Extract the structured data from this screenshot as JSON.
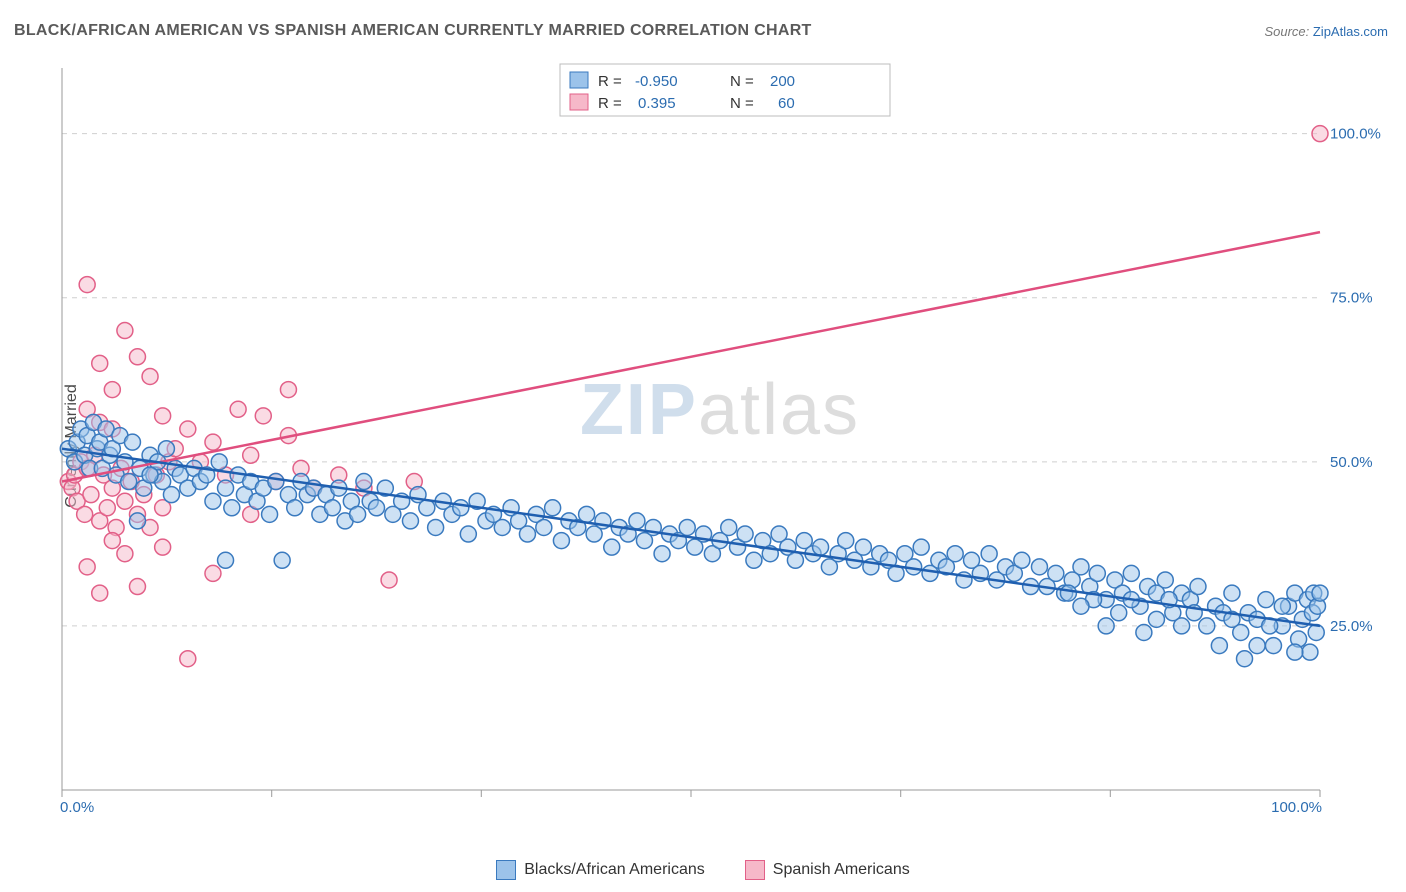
{
  "title": "BLACK/AFRICAN AMERICAN VS SPANISH AMERICAN CURRENTLY MARRIED CORRELATION CHART",
  "source_label": "Source: ",
  "source_link_text": "ZipAtlas.com",
  "ylabel": "Currently Married",
  "watermark_a": "ZIP",
  "watermark_b": "atlas",
  "chart": {
    "type": "scatter",
    "background_color": "#ffffff",
    "grid_color": "#cfcfcf",
    "axis_color": "#9a9a9a",
    "xlim": [
      0,
      100
    ],
    "ylim": [
      0,
      110
    ],
    "ytick_positions": [
      25,
      50,
      75,
      100
    ],
    "ytick_labels": [
      "25.0%",
      "50.0%",
      "75.0%",
      "100.0%"
    ],
    "xtick_positions": [
      0,
      16.67,
      33.33,
      50,
      66.67,
      83.33,
      100
    ],
    "xtick_labels_shown": {
      "0": "0.0%",
      "100": "100.0%"
    },
    "marker_radius": 8,
    "marker_opacity": 0.5,
    "trend_line_width": 2.5
  },
  "series_blue": {
    "label": "Blacks/African Americans",
    "fill_color": "#9cc3ea",
    "stroke_color": "#3a7abf",
    "trend_color": "#1f5fb0",
    "R": "-0.950",
    "N": "200",
    "trend": {
      "x0": 0,
      "y0": 52,
      "x1": 100,
      "y1": 25
    },
    "points": [
      [
        0.5,
        52
      ],
      [
        1,
        50
      ],
      [
        1.2,
        53
      ],
      [
        1.5,
        55
      ],
      [
        1.8,
        51
      ],
      [
        2,
        54
      ],
      [
        2.2,
        49
      ],
      [
        2.5,
        56
      ],
      [
        2.8,
        52
      ],
      [
        3,
        53
      ],
      [
        3.2,
        49
      ],
      [
        3.5,
        55
      ],
      [
        3.8,
        51
      ],
      [
        4,
        52
      ],
      [
        4.3,
        48
      ],
      [
        4.6,
        54
      ],
      [
        5,
        50
      ],
      [
        5.3,
        47
      ],
      [
        5.6,
        53
      ],
      [
        6,
        41
      ],
      [
        6.2,
        49
      ],
      [
        6.5,
        46
      ],
      [
        7,
        51
      ],
      [
        7.3,
        48
      ],
      [
        7.6,
        50
      ],
      [
        8,
        47
      ],
      [
        8.3,
        52
      ],
      [
        8.7,
        45
      ],
      [
        9,
        49
      ],
      [
        9.4,
        48
      ],
      [
        10,
        46
      ],
      [
        10.5,
        49
      ],
      [
        11,
        47
      ],
      [
        11.5,
        48
      ],
      [
        12,
        44
      ],
      [
        12.5,
        50
      ],
      [
        13,
        46
      ],
      [
        13.5,
        43
      ],
      [
        14,
        48
      ],
      [
        14.5,
        45
      ],
      [
        15,
        47
      ],
      [
        15.5,
        44
      ],
      [
        16,
        46
      ],
      [
        16.5,
        42
      ],
      [
        17,
        47
      ],
      [
        17.5,
        35
      ],
      [
        18,
        45
      ],
      [
        18.5,
        43
      ],
      [
        19,
        47
      ],
      [
        19.5,
        45
      ],
      [
        20,
        46
      ],
      [
        20.5,
        42
      ],
      [
        21,
        45
      ],
      [
        21.5,
        43
      ],
      [
        22,
        46
      ],
      [
        22.5,
        41
      ],
      [
        23,
        44
      ],
      [
        23.5,
        42
      ],
      [
        24,
        47
      ],
      [
        24.5,
        44
      ],
      [
        25,
        43
      ],
      [
        25.7,
        46
      ],
      [
        26.3,
        42
      ],
      [
        27,
        44
      ],
      [
        27.7,
        41
      ],
      [
        28.3,
        45
      ],
      [
        29,
        43
      ],
      [
        29.7,
        40
      ],
      [
        30.3,
        44
      ],
      [
        31,
        42
      ],
      [
        31.7,
        43
      ],
      [
        32.3,
        39
      ],
      [
        33,
        44
      ],
      [
        33.7,
        41
      ],
      [
        34.3,
        42
      ],
      [
        35,
        40
      ],
      [
        35.7,
        43
      ],
      [
        36.3,
        41
      ],
      [
        37,
        39
      ],
      [
        37.7,
        42
      ],
      [
        38.3,
        40
      ],
      [
        39,
        43
      ],
      [
        39.7,
        38
      ],
      [
        40.3,
        41
      ],
      [
        41,
        40
      ],
      [
        41.7,
        42
      ],
      [
        42.3,
        39
      ],
      [
        43,
        41
      ],
      [
        43.7,
        37
      ],
      [
        44.3,
        40
      ],
      [
        45,
        39
      ],
      [
        45.7,
        41
      ],
      [
        46.3,
        38
      ],
      [
        47,
        40
      ],
      [
        47.7,
        36
      ],
      [
        48.3,
        39
      ],
      [
        49,
        38
      ],
      [
        49.7,
        40
      ],
      [
        50.3,
        37
      ],
      [
        51,
        39
      ],
      [
        51.7,
        36
      ],
      [
        52.3,
        38
      ],
      [
        53,
        40
      ],
      [
        53.7,
        37
      ],
      [
        54.3,
        39
      ],
      [
        55,
        35
      ],
      [
        55.7,
        38
      ],
      [
        56.3,
        36
      ],
      [
        57,
        39
      ],
      [
        57.7,
        37
      ],
      [
        58.3,
        35
      ],
      [
        59,
        38
      ],
      [
        59.7,
        36
      ],
      [
        60.3,
        37
      ],
      [
        61,
        34
      ],
      [
        61.7,
        36
      ],
      [
        62.3,
        38
      ],
      [
        63,
        35
      ],
      [
        63.7,
        37
      ],
      [
        64.3,
        34
      ],
      [
        65,
        36
      ],
      [
        65.7,
        35
      ],
      [
        66.3,
        33
      ],
      [
        67,
        36
      ],
      [
        67.7,
        34
      ],
      [
        68.3,
        37
      ],
      [
        69,
        33
      ],
      [
        69.7,
        35
      ],
      [
        70.3,
        34
      ],
      [
        71,
        36
      ],
      [
        71.7,
        32
      ],
      [
        72.3,
        35
      ],
      [
        73,
        33
      ],
      [
        73.7,
        36
      ],
      [
        74.3,
        32
      ],
      [
        75,
        34
      ],
      [
        75.7,
        33
      ],
      [
        76.3,
        35
      ],
      [
        77,
        31
      ],
      [
        77.7,
        34
      ],
      [
        78.3,
        31
      ],
      [
        79,
        33
      ],
      [
        79.7,
        30
      ],
      [
        80.3,
        32
      ],
      [
        81,
        34
      ],
      [
        81.7,
        31
      ],
      [
        82.3,
        33
      ],
      [
        83,
        29
      ],
      [
        83.7,
        32
      ],
      [
        84.3,
        30
      ],
      [
        85,
        33
      ],
      [
        85.7,
        28
      ],
      [
        86.3,
        31
      ],
      [
        87,
        30
      ],
      [
        87.7,
        32
      ],
      [
        88.3,
        27
      ],
      [
        89,
        30
      ],
      [
        89.7,
        29
      ],
      [
        90.3,
        31
      ],
      [
        91,
        25
      ],
      [
        91.7,
        28
      ],
      [
        92.3,
        27
      ],
      [
        93,
        30
      ],
      [
        93.7,
        24
      ],
      [
        94.3,
        27
      ],
      [
        95,
        26
      ],
      [
        95.7,
        29
      ],
      [
        96.3,
        22
      ],
      [
        97,
        25
      ],
      [
        97.5,
        28
      ],
      [
        98,
        30
      ],
      [
        98.3,
        23
      ],
      [
        98.6,
        26
      ],
      [
        99,
        29
      ],
      [
        99.2,
        21
      ],
      [
        99.4,
        27
      ],
      [
        99.5,
        30
      ],
      [
        99.7,
        24
      ],
      [
        99.8,
        28
      ],
      [
        100,
        30
      ],
      [
        7,
        48
      ],
      [
        13,
        35
      ],
      [
        94,
        20
      ],
      [
        95,
        22
      ],
      [
        96,
        25
      ],
      [
        97,
        28
      ],
      [
        98,
        21
      ],
      [
        92,
        22
      ],
      [
        93,
        26
      ],
      [
        90,
        27
      ],
      [
        89,
        25
      ],
      [
        88,
        29
      ],
      [
        87,
        26
      ],
      [
        86,
        24
      ],
      [
        85,
        29
      ],
      [
        84,
        27
      ],
      [
        83,
        25
      ],
      [
        82,
        29
      ],
      [
        81,
        28
      ],
      [
        80,
        30
      ]
    ]
  },
  "series_pink": {
    "label": "Spanish Americans",
    "fill_color": "#f6b8c9",
    "stroke_color": "#e26088",
    "trend_color": "#e04e7e",
    "R": "0.395",
    "N": "60",
    "trend": {
      "x0": 0,
      "y0": 47,
      "x1": 100,
      "y1": 85
    },
    "points": [
      [
        0.5,
        47
      ],
      [
        0.8,
        46
      ],
      [
        1,
        48
      ],
      [
        1.2,
        44
      ],
      [
        1.5,
        50
      ],
      [
        1.8,
        42
      ],
      [
        2,
        49
      ],
      [
        2.3,
        45
      ],
      [
        2.6,
        51
      ],
      [
        3,
        41
      ],
      [
        3.3,
        48
      ],
      [
        3.6,
        43
      ],
      [
        4,
        46
      ],
      [
        4.3,
        40
      ],
      [
        4.7,
        49
      ],
      [
        5,
        44
      ],
      [
        5.5,
        47
      ],
      [
        6,
        42
      ],
      [
        6.5,
        45
      ],
      [
        7,
        40
      ],
      [
        7.5,
        48
      ],
      [
        8,
        43
      ],
      [
        8.5,
        50
      ],
      [
        2,
        58
      ],
      [
        3,
        56
      ],
      [
        2,
        77
      ],
      [
        5,
        70
      ],
      [
        6,
        66
      ],
      [
        7,
        63
      ],
      [
        3,
        65
      ],
      [
        4,
        61
      ],
      [
        8,
        57
      ],
      [
        4,
        55
      ],
      [
        9,
        52
      ],
      [
        10,
        55
      ],
      [
        11,
        50
      ],
      [
        12,
        53
      ],
      [
        13,
        48
      ],
      [
        14,
        58
      ],
      [
        15,
        51
      ],
      [
        16,
        57
      ],
      [
        17,
        47
      ],
      [
        18,
        54
      ],
      [
        19,
        49
      ],
      [
        18,
        61
      ],
      [
        20,
        46
      ],
      [
        22,
        48
      ],
      [
        24,
        46
      ],
      [
        26,
        32
      ],
      [
        28,
        47
      ],
      [
        2,
        34
      ],
      [
        4,
        38
      ],
      [
        6,
        31
      ],
      [
        8,
        37
      ],
      [
        10,
        20
      ],
      [
        3,
        30
      ],
      [
        5,
        36
      ],
      [
        12,
        33
      ],
      [
        15,
        42
      ],
      [
        100,
        100
      ]
    ]
  },
  "legend_top": {
    "R_label": "R =",
    "N_label": "N ="
  },
  "bottom_legend": {
    "items": [
      {
        "key": "blue",
        "label": "Blacks/African Americans"
      },
      {
        "key": "pink",
        "label": "Spanish Americans"
      }
    ]
  }
}
